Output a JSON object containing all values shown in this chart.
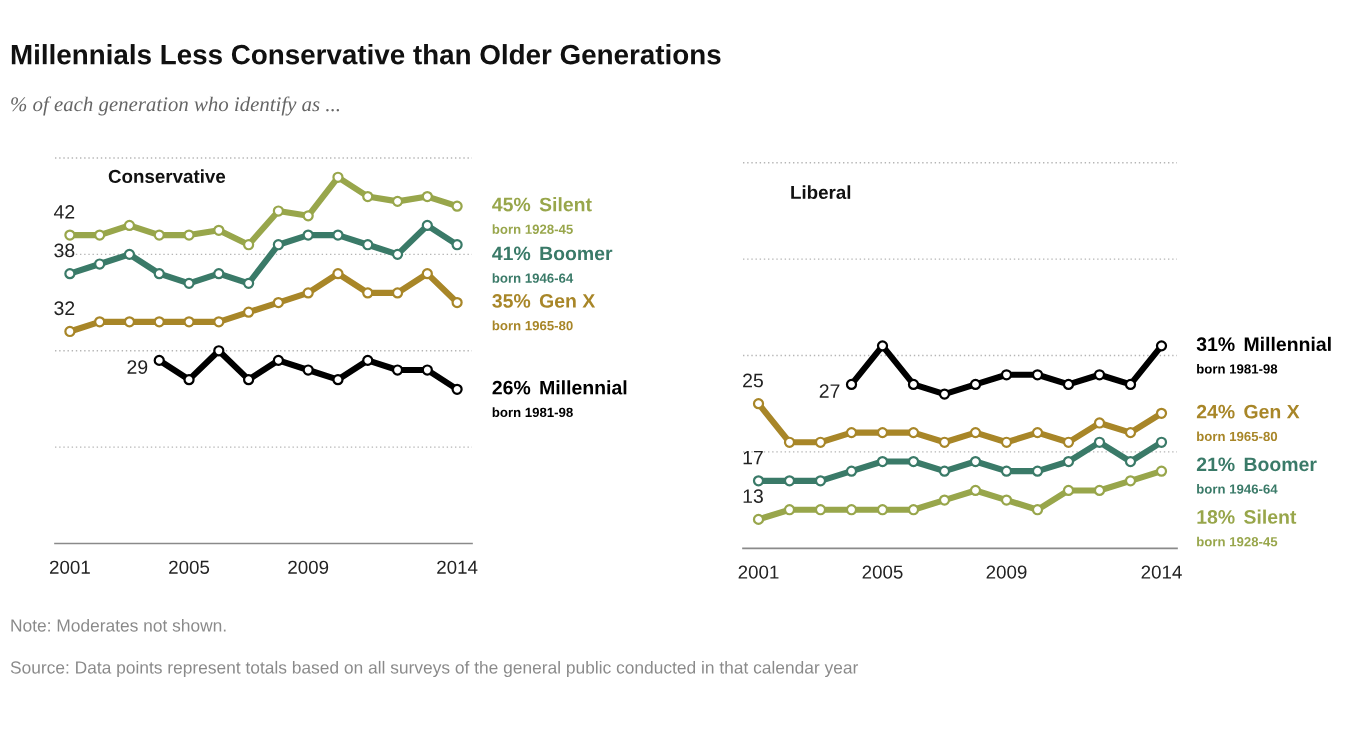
{
  "chart_data": [
    {
      "type": "other",
      "title": "Millennials Less Conservative than Older Generations",
      "subtitle": "% of each generation who identify as ...",
      "annotations": [
        "Note: Moderates not shown.",
        "Source: Data points represent totals based on all surveys of the general public conducted in that calendar year"
      ]
    },
    {
      "type": "line",
      "title": "Conservative",
      "x": [
        2001,
        2002,
        2003,
        2004,
        2005,
        2006,
        2007,
        2008,
        2009,
        2010,
        2011,
        2012,
        2013,
        2014
      ],
      "series": [
        {
          "name": "Silent",
          "color": "#98a64b",
          "values": [
            42,
            42,
            43,
            42,
            42,
            42.5,
            41,
            44.5,
            44,
            48,
            46,
            45.5,
            46,
            45
          ],
          "value_labels": [
            "42",
            null,
            null,
            null,
            null,
            null,
            null,
            null,
            null,
            null,
            null,
            null,
            null,
            "45%"
          ]
        },
        {
          "name": "Boomer",
          "color": "#3a7a68",
          "values": [
            38,
            39,
            40,
            38,
            37,
            38,
            37,
            41,
            42,
            42,
            41,
            40,
            43,
            41
          ],
          "value_labels": [
            "38",
            null,
            null,
            null,
            null,
            null,
            null,
            null,
            null,
            null,
            null,
            null,
            null,
            "41%"
          ]
        },
        {
          "name": "Gen X",
          "color": "#a88628",
          "values": [
            32,
            33,
            33,
            33,
            33,
            33,
            34,
            35,
            36,
            38,
            36,
            36,
            38,
            35
          ],
          "value_labels": [
            "32",
            null,
            null,
            null,
            null,
            null,
            null,
            null,
            null,
            null,
            null,
            null,
            null,
            "35%"
          ]
        },
        {
          "name": "Millennial",
          "color": "#000000",
          "x": [
            2004,
            2005,
            2006,
            2007,
            2008,
            2009,
            2010,
            2011,
            2012,
            2013,
            2014
          ],
          "values": [
            29,
            27,
            30,
            27,
            29,
            28,
            27,
            29,
            28,
            28,
            26
          ],
          "value_labels": [
            "29",
            null,
            null,
            null,
            null,
            null,
            null,
            null,
            null,
            null,
            "26%"
          ]
        }
      ],
      "xlim": [
        2000.5,
        2014.5
      ],
      "xticks": [
        2001,
        2005,
        2009,
        2014
      ],
      "ylim": [
        10,
        50
      ],
      "yticks": [
        {
          "value": 20,
          "label": null
        },
        {
          "value": 30,
          "label": null
        },
        {
          "value": 40,
          "label": null
        },
        {
          "value": 50,
          "label": null
        }
      ],
      "grid": "y",
      "tick_labels": "x",
      "marker": "circle",
      "line_style": "solid",
      "annotations": [
        "born 1928-45",
        "born 1946-64",
        "born 1965-80",
        "born 1981-98"
      ]
    },
    {
      "type": "line",
      "title": "Liberal",
      "x": [
        2001,
        2002,
        2003,
        2004,
        2005,
        2006,
        2007,
        2008,
        2009,
        2010,
        2011,
        2012,
        2013,
        2014
      ],
      "series": [
        {
          "name": "Millennial",
          "color": "#000000",
          "x": [
            2004,
            2005,
            2006,
            2007,
            2008,
            2009,
            2010,
            2011,
            2012,
            2013,
            2014
          ],
          "values": [
            27,
            31,
            27,
            26,
            27,
            28,
            28,
            27,
            28,
            27,
            31
          ],
          "value_labels": [
            "27",
            null,
            null,
            null,
            null,
            null,
            null,
            null,
            null,
            null,
            "31%"
          ]
        },
        {
          "name": "Gen X",
          "color": "#a88628",
          "values": [
            25,
            21,
            21,
            22,
            22,
            22,
            21,
            22,
            21,
            22,
            21,
            23,
            22,
            24
          ],
          "value_labels": [
            "25",
            null,
            null,
            null,
            null,
            null,
            null,
            null,
            null,
            null,
            null,
            null,
            null,
            "24%"
          ]
        },
        {
          "name": "Boomer",
          "color": "#3a7a68",
          "values": [
            17,
            17,
            17,
            18,
            19,
            19,
            18,
            19,
            18,
            18,
            19,
            21,
            19,
            21
          ],
          "value_labels": [
            "17",
            null,
            null,
            null,
            null,
            null,
            null,
            null,
            null,
            null,
            null,
            null,
            null,
            "21%"
          ]
        },
        {
          "name": "Silent",
          "color": "#98a64b",
          "values": [
            13,
            14,
            14,
            14,
            14,
            14,
            15,
            16,
            15,
            14,
            16,
            16,
            17,
            18
          ],
          "value_labels": [
            "13",
            null,
            null,
            null,
            null,
            null,
            null,
            null,
            null,
            null,
            null,
            null,
            null,
            "18%"
          ]
        }
      ],
      "xlim": [
        2000.5,
        2014.5
      ],
      "xticks": [
        2001,
        2005,
        2009,
        2014
      ],
      "ylim": [
        10,
        50
      ],
      "yticks": [
        {
          "value": 20,
          "label": null
        },
        {
          "value": 30,
          "label": null
        },
        {
          "value": 40,
          "label": null
        },
        {
          "value": 50,
          "label": null
        }
      ],
      "grid": "y",
      "tick_labels": "x",
      "marker": "circle",
      "line_style": "solid",
      "annotations": [
        "born 1981-98",
        "born 1965-80",
        "born 1946-64",
        "born 1928-45"
      ]
    }
  ]
}
